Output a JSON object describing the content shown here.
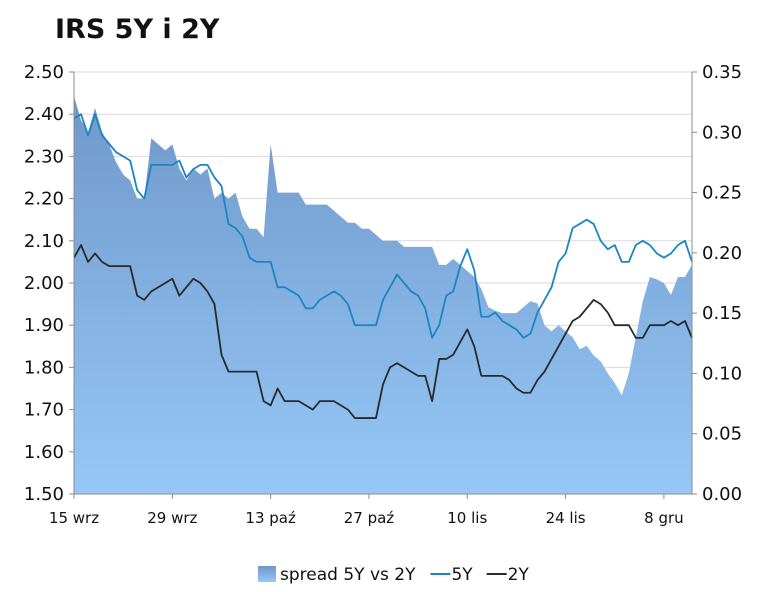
{
  "chart_data": {
    "type": "line",
    "title": "IRS 5Y i 2Y",
    "left_axis": {
      "ylim": [
        1.5,
        2.5
      ],
      "ticks": [
        "2.50",
        "2.40",
        "2.30",
        "2.20",
        "2.10",
        "2.00",
        "1.90",
        "1.80",
        "1.70",
        "1.60",
        "1.50"
      ]
    },
    "right_axis": {
      "ylim": [
        0.0,
        0.35
      ],
      "ticks": [
        "0.35",
        "0.30",
        "0.25",
        "0.20",
        "0.15",
        "0.10",
        "0.05",
        "0.00"
      ]
    },
    "x_ticks": [
      "15 wrz",
      "29 wrz",
      "13 paź",
      "27 paź",
      "10 lis",
      "24 lis",
      "8 gru"
    ],
    "x_tick_days": [
      0,
      14,
      28,
      42,
      56,
      70,
      84
    ],
    "x_range_days": [
      0,
      88
    ],
    "grid": "horizontal",
    "legend_position": "bottom",
    "series": [
      {
        "name": "spread 5Y vs 2Y",
        "kind": "area",
        "axis": "right",
        "color": "#8ab6e8",
        "x": [
          0,
          1,
          2,
          3,
          4,
          5,
          6,
          7,
          8,
          9,
          10,
          11,
          12,
          13,
          14,
          15,
          16,
          17,
          18,
          19,
          20,
          21,
          22,
          23,
          24,
          25,
          26,
          27,
          28,
          29,
          30,
          31,
          32,
          33,
          34,
          35,
          36,
          37,
          38,
          39,
          40,
          41,
          42,
          43,
          44,
          45,
          46,
          47,
          48,
          49,
          50,
          51,
          52,
          53,
          54,
          55,
          56,
          57,
          58,
          59,
          60,
          61,
          62,
          63,
          64,
          65,
          66,
          67,
          68,
          69,
          70,
          71,
          72,
          73,
          74,
          75,
          76,
          77,
          78,
          79,
          80,
          81,
          82,
          83,
          84,
          85,
          86,
          87,
          88
        ],
        "values": [
          0.33,
          0.31,
          0.3,
          0.32,
          0.3,
          0.29,
          0.275,
          0.265,
          0.26,
          0.245,
          0.245,
          0.295,
          0.29,
          0.285,
          0.29,
          0.27,
          0.26,
          0.27,
          0.265,
          0.27,
          0.245,
          0.25,
          0.245,
          0.25,
          0.23,
          0.22,
          0.22,
          0.213,
          0.29,
          0.25,
          0.25,
          0.25,
          0.25,
          0.24,
          0.24,
          0.24,
          0.24,
          0.235,
          0.23,
          0.225,
          0.225,
          0.22,
          0.22,
          0.215,
          0.21,
          0.21,
          0.21,
          0.205,
          0.205,
          0.205,
          0.205,
          0.205,
          0.19,
          0.19,
          0.195,
          0.19,
          0.185,
          0.18,
          0.17,
          0.155,
          0.152,
          0.15,
          0.15,
          0.15,
          0.155,
          0.16,
          0.158,
          0.14,
          0.135,
          0.14,
          0.135,
          0.13,
          0.12,
          0.123,
          0.115,
          0.11,
          0.1,
          0.092,
          0.082,
          0.1,
          0.13,
          0.16,
          0.18,
          0.178,
          0.175,
          0.165,
          0.18,
          0.18,
          0.19
        ]
      },
      {
        "name": "5Y",
        "kind": "line",
        "axis": "left",
        "color": "#1a86c2",
        "x": [
          0,
          1,
          2,
          3,
          4,
          5,
          6,
          7,
          8,
          9,
          10,
          11,
          12,
          13,
          14,
          15,
          16,
          17,
          18,
          19,
          20,
          21,
          22,
          23,
          24,
          25,
          26,
          27,
          28,
          29,
          30,
          31,
          32,
          33,
          34,
          35,
          36,
          37,
          38,
          39,
          40,
          41,
          42,
          43,
          44,
          45,
          46,
          47,
          48,
          49,
          50,
          51,
          52,
          53,
          54,
          55,
          56,
          57,
          58,
          59,
          60,
          61,
          62,
          63,
          64,
          65,
          66,
          67,
          68,
          69,
          70,
          71,
          72,
          73,
          74,
          75,
          76,
          77,
          78,
          79,
          80,
          81,
          82,
          83,
          84,
          85,
          86,
          87,
          88
        ],
        "values": [
          2.39,
          2.4,
          2.35,
          2.4,
          2.35,
          2.33,
          2.31,
          2.3,
          2.29,
          2.22,
          2.2,
          2.28,
          2.28,
          2.28,
          2.28,
          2.29,
          2.25,
          2.27,
          2.28,
          2.28,
          2.25,
          2.23,
          2.14,
          2.13,
          2.11,
          2.06,
          2.05,
          2.05,
          2.05,
          1.99,
          1.99,
          1.98,
          1.97,
          1.94,
          1.94,
          1.96,
          1.97,
          1.98,
          1.97,
          1.95,
          1.9,
          1.9,
          1.9,
          1.9,
          1.96,
          1.99,
          2.02,
          2.0,
          1.98,
          1.97,
          1.94,
          1.87,
          1.9,
          1.97,
          1.98,
          2.04,
          2.08,
          2.03,
          1.92,
          1.92,
          1.93,
          1.91,
          1.9,
          1.89,
          1.87,
          1.88,
          1.93,
          1.96,
          1.99,
          2.05,
          2.07,
          2.13,
          2.14,
          2.15,
          2.14,
          2.1,
          2.08,
          2.09,
          2.05,
          2.05,
          2.09,
          2.1,
          2.09,
          2.07,
          2.06,
          2.07,
          2.09,
          2.1,
          2.05
        ]
      },
      {
        "name": "2Y",
        "kind": "line",
        "axis": "left",
        "color": "#2a2a2a",
        "x": [
          0,
          1,
          2,
          3,
          4,
          5,
          6,
          7,
          8,
          9,
          10,
          11,
          12,
          13,
          14,
          15,
          16,
          17,
          18,
          19,
          20,
          21,
          22,
          23,
          24,
          25,
          26,
          27,
          28,
          29,
          30,
          31,
          32,
          33,
          34,
          35,
          36,
          37,
          38,
          39,
          40,
          41,
          42,
          43,
          44,
          45,
          46,
          47,
          48,
          49,
          50,
          51,
          52,
          53,
          54,
          55,
          56,
          57,
          58,
          59,
          60,
          61,
          62,
          63,
          64,
          65,
          66,
          67,
          68,
          69,
          70,
          71,
          72,
          73,
          74,
          75,
          76,
          77,
          78,
          79,
          80,
          81,
          82,
          83,
          84,
          85,
          86,
          87,
          88
        ],
        "values": [
          2.06,
          2.09,
          2.05,
          2.07,
          2.05,
          2.04,
          2.04,
          2.04,
          2.04,
          1.97,
          1.96,
          1.98,
          1.99,
          2.0,
          2.01,
          1.97,
          1.99,
          2.01,
          2.0,
          1.98,
          1.95,
          1.83,
          1.79,
          1.79,
          1.79,
          1.79,
          1.79,
          1.72,
          1.71,
          1.75,
          1.72,
          1.72,
          1.72,
          1.71,
          1.7,
          1.72,
          1.72,
          1.72,
          1.71,
          1.7,
          1.68,
          1.68,
          1.68,
          1.68,
          1.76,
          1.8,
          1.81,
          1.8,
          1.79,
          1.78,
          1.78,
          1.72,
          1.82,
          1.82,
          1.83,
          1.86,
          1.89,
          1.85,
          1.78,
          1.78,
          1.78,
          1.78,
          1.77,
          1.75,
          1.74,
          1.74,
          1.77,
          1.79,
          1.82,
          1.85,
          1.88,
          1.91,
          1.92,
          1.94,
          1.96,
          1.95,
          1.93,
          1.9,
          1.9,
          1.9,
          1.87,
          1.87,
          1.9,
          1.9,
          1.9,
          1.91,
          1.9,
          1.91,
          1.87
        ]
      }
    ]
  }
}
